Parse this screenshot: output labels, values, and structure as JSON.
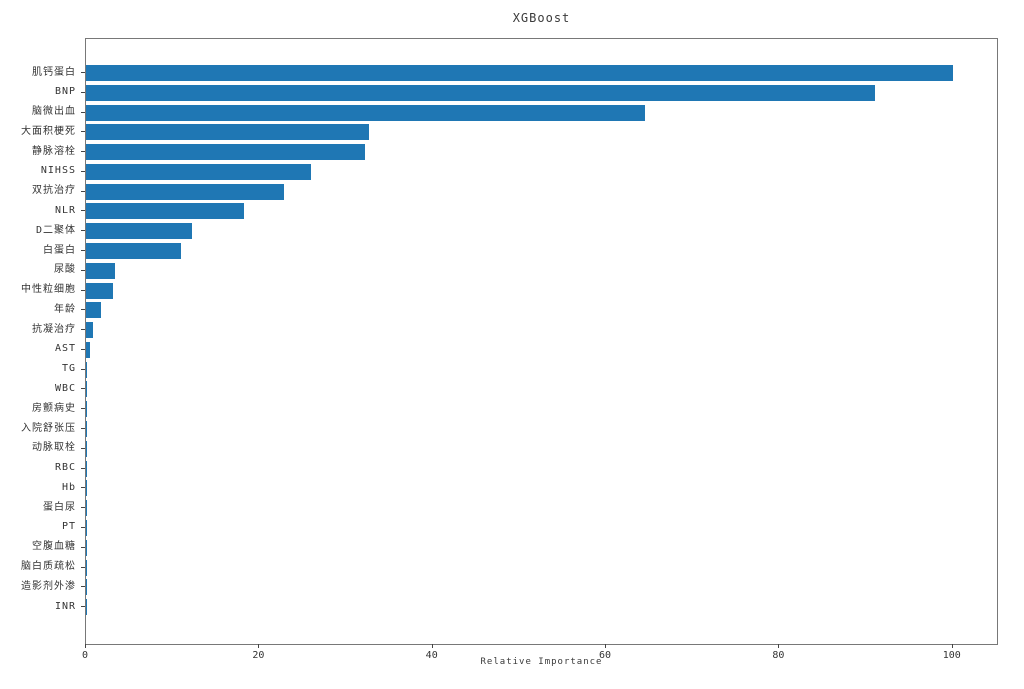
{
  "chart_data": {
    "type": "bar",
    "orientation": "horizontal",
    "title": "XGBoost",
    "xlabel": "Relative Importance",
    "ylabel": "",
    "xlim": [
      0,
      105
    ],
    "x_ticks": [
      "0",
      "20",
      "40",
      "60",
      "80",
      "100"
    ],
    "x_tick_values": [
      0,
      20,
      40,
      60,
      80,
      100
    ],
    "grid": false,
    "legend": "none",
    "bar_color": "#1f77b4",
    "categories": [
      "肌钙蛋白",
      "BNP",
      "脑微出血",
      "大面积梗死",
      "静脉溶栓",
      "NIHSS",
      "双抗治疗",
      "NLR",
      "D二聚体",
      "白蛋白",
      "尿酸",
      "中性粒细胞",
      "年龄",
      "抗凝治疗",
      "AST",
      "TG",
      "WBC",
      "房颤病史",
      "入院舒张压",
      "动脉取栓",
      "RBC",
      "Hb",
      "蛋白尿",
      "PT",
      "空腹血糖",
      "脑白质疏松",
      "造影剂外渗",
      "INR"
    ],
    "values": [
      100,
      91,
      64.5,
      32.6,
      32.2,
      26,
      22.8,
      18.2,
      12.2,
      11,
      3.3,
      3.1,
      1.7,
      0.8,
      0.5,
      0.1,
      0.1,
      0.05,
      0.05,
      0.05,
      0.05,
      0.05,
      0.05,
      0.05,
      0.05,
      0.05,
      0.05,
      0.05
    ]
  }
}
